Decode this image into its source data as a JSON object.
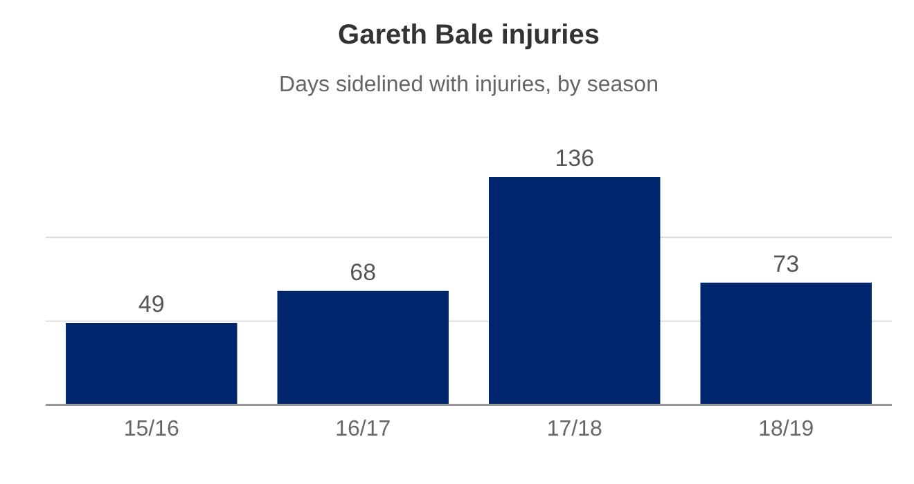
{
  "chart_data": {
    "type": "bar",
    "title": "Gareth Bale injuries",
    "subtitle": "Days sidelined with injuries, by season",
    "categories": [
      "15/16",
      "16/17",
      "17/18",
      "18/19"
    ],
    "values": [
      49,
      68,
      136,
      73
    ],
    "color": "#00276e",
    "ref_lines": [
      {
        "axis": "y",
        "value": 50,
        "color": "#dddddd"
      },
      {
        "axis": "y",
        "value": 100,
        "color": "#dddddd"
      }
    ],
    "tick_labels": "x",
    "data_labels": true
  }
}
